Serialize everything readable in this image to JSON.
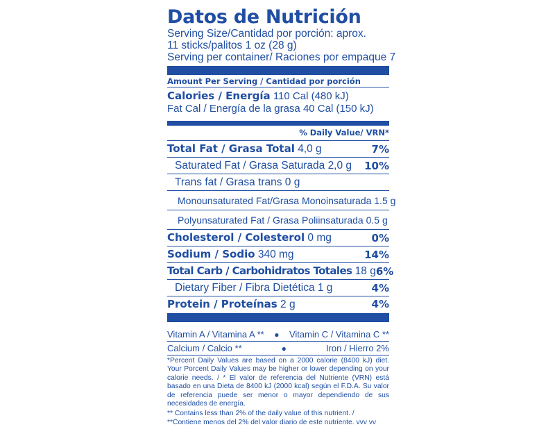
{
  "label": {
    "title": "Datos de Nutrición",
    "serving_size_1": "Serving Size/Cantidad por porción: aprox.",
    "serving_size_2": "11 sticks/palitos 1 oz (28 g)",
    "servings_per_container": "Serving per container/ Raciones por empaque 7",
    "amount_per_serving": "Amount Per Serving / Cantidad por porción",
    "calories_label": "Calories / Energía",
    "calories_value": "110 Cal (480 kJ)",
    "fat_calories": "Fat Cal / Energía de la grasa  40 Cal (150 kJ)",
    "daily_value_header": "% Daily Value/ VRN*"
  },
  "nutrients": [
    {
      "label": "Total Fat / Grasa Total",
      "amount": "4,0 g",
      "pct": "7%"
    },
    {
      "label": "Saturated Fat / Grasa Saturada 2,0 g",
      "pct": "10%"
    },
    {
      "label": "Trans fat / Grasa trans 0 g"
    },
    {
      "label": "Monounsaturated Fat/Grasa Monoinsaturada 1.5 g"
    },
    {
      "label": "Polyunsaturated Fat / Grasa Poliinsaturada 0.5 g"
    },
    {
      "label": "Cholesterol / Colesterol",
      "amount": "0 mg",
      "pct": "0%"
    },
    {
      "label": "Sodium / Sodio",
      "amount": "340 mg",
      "pct": "14%"
    },
    {
      "label": "Total Carb / Carbohidratos Totales",
      "amount": "18 g",
      "pct": "6%"
    },
    {
      "label": "Dietary Fiber / Fibra Dietética  1 g",
      "pct": "4%"
    },
    {
      "label": "Protein / Proteínas",
      "amount": "2 g",
      "pct": "4%"
    }
  ],
  "vitamins": {
    "vitamin_a": "Vitamin A / Vitamina A **",
    "vitamin_c": "Vitamin C / Vitamina C **",
    "calcium": "Calcium / Calcio **",
    "iron": "Iron / Hierro 2%",
    "separator": "●"
  },
  "footnotes": {
    "percent_note": "*Percent Daily Values are based on a 2000  calorie  (8400 kJ) diet. Your Porcent Daily Values may be higher or lower depending on your calorie needs. / * El valor de referencia del Nutriente (VRN) está basado en una Dieta de 8400 kJ (2000 kcal) según el F.D.A. Su valor de referencia puede ser menor o mayor dependiendo de sus necesidades de energía.",
    "contains_note": "** Contains less than 2% of the daily value of this nutrient. / **Contiene menos del 2% del valor diario de este nutriente.   vvv vv"
  },
  "colors": {
    "ink": "#1f4ea3",
    "background": "#ffffff"
  }
}
